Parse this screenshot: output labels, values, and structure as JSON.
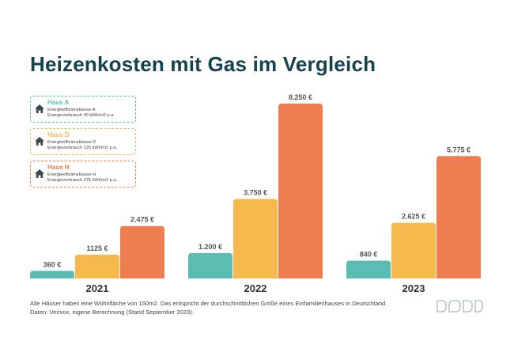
{
  "title": "Heizenkosten mit Gas im Vergleich",
  "legend": [
    {
      "name": "Haus A",
      "class_text": "Energieeffizienzklasse A",
      "consumption_text": "Energieverbrauch 40 kWh/m2 p.a.",
      "color": "#5bbcb1"
    },
    {
      "name": "Haus D",
      "class_text": "Energieeffizienzklasse D",
      "consumption_text": "Energieverbrauch 125 kWh/m2 p.a.",
      "color": "#f5b94d"
    },
    {
      "name": "Haus H",
      "class_text": "Energieeffizienzklasse H",
      "consumption_text": "Energieverbrauch 275 kWh/m2 p.a.",
      "color": "#ee7d4f"
    }
  ],
  "chart_data": {
    "type": "bar",
    "title": "Heizenkosten mit Gas im Vergleich",
    "categories": [
      "2021",
      "2022",
      "2023"
    ],
    "series": [
      {
        "name": "Haus A",
        "values": [
          360,
          1200,
          840
        ],
        "labels": [
          "360 €",
          "1.200 €",
          "840 €"
        ],
        "color": "#5bbcb1"
      },
      {
        "name": "Haus D",
        "values": [
          1125,
          3750,
          2625
        ],
        "labels": [
          "1125 €",
          "3.750 €",
          "2.625 €"
        ],
        "color": "#f5b94d"
      },
      {
        "name": "Haus H",
        "values": [
          2475,
          8250,
          5775
        ],
        "labels": [
          "2.475 €",
          "8.250 €",
          "5.775 €"
        ],
        "color": "#ee7d4f"
      }
    ],
    "ylim": [
      0,
      8250
    ],
    "grid": false,
    "legend_position": "top-left",
    "xlabel": "",
    "ylabel": ""
  },
  "footnote": {
    "line1": "Alle Häuser haben eine Wohnfläche von 150m2. Das entspricht der durchschnittlichen Größe eines Einfamilienhauses in Deutschland.",
    "line2": "Daten: Verivox, eigene Berechnung (Stand September 2023)."
  }
}
